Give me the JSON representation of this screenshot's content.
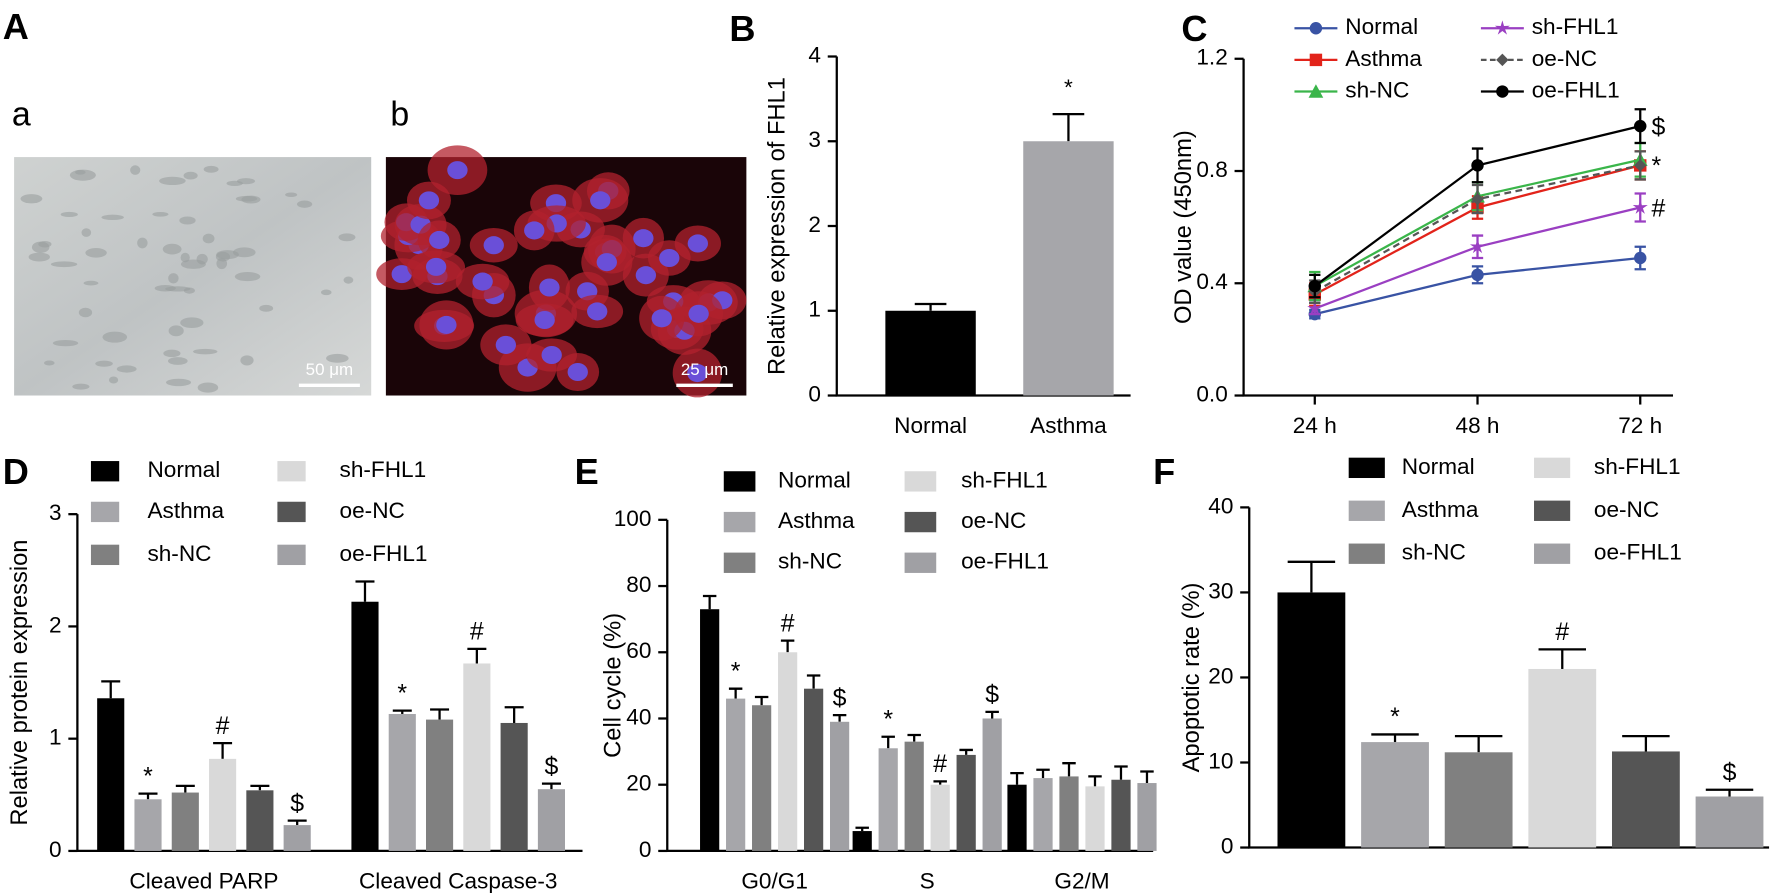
{
  "figure_A": {
    "label": "A",
    "images": [
      {
        "label": "a",
        "scale_bar": "50 μm"
      },
      {
        "label": "b",
        "scale_bar": "25 μm"
      }
    ]
  },
  "chart_data": [
    {
      "type": "bar",
      "label": "B",
      "ylabel": "Relative expression of FHL1",
      "categories": [
        "Normal",
        "Asthma"
      ],
      "values": [
        1.0,
        3.0
      ],
      "errors": [
        0.08,
        0.32
      ],
      "annotations": [
        null,
        "*"
      ],
      "colors": [
        "#000000",
        "#a6a6aa"
      ],
      "ylim": [
        0,
        4
      ],
      "yticks": [
        0,
        1,
        2,
        3,
        4
      ]
    },
    {
      "type": "line",
      "label": "C",
      "ylabel": "OD value (450nm)",
      "categories": [
        "24 h",
        "48 h",
        "72 h"
      ],
      "ylim": [
        0,
        1.2
      ],
      "yticks": [
        {
          "value": 0,
          "label": "0.0"
        },
        0.4,
        0.8,
        1.2
      ],
      "series": [
        {
          "name": "Normal",
          "color": "#3953a4",
          "marker": "circle",
          "values": [
            0.29,
            0.43,
            0.49
          ],
          "errors": [
            0.015,
            0.03,
            0.04
          ]
        },
        {
          "name": "Asthma",
          "color": "#e2231a",
          "marker": "square",
          "values": [
            0.36,
            0.67,
            0.82
          ],
          "errors": [
            0.04,
            0.04,
            0.05
          ],
          "annotations": [
            null,
            null,
            "*"
          ]
        },
        {
          "name": "sh-NC",
          "color": "#3ab54a",
          "marker": "triangle",
          "values": [
            0.39,
            0.71,
            0.84
          ],
          "errors": [
            0.05,
            0.05,
            0.06
          ]
        },
        {
          "name": "sh-FHL1",
          "color": "#9a3fc2",
          "marker": "star",
          "values": [
            0.31,
            0.53,
            0.67
          ],
          "errors": [
            0.02,
            0.04,
            0.05
          ],
          "annotations": [
            null,
            null,
            "#"
          ]
        },
        {
          "name": "oe-NC",
          "color": "#555555",
          "marker": "diamond",
          "dash": true,
          "values": [
            0.37,
            0.7,
            0.82
          ],
          "errors": [
            0.04,
            0.05,
            0.05
          ]
        },
        {
          "name": "oe-FHL1",
          "color": "#000000",
          "marker": "circle",
          "values": [
            0.39,
            0.82,
            0.96
          ],
          "errors": [
            0.04,
            0.06,
            0.06
          ],
          "annotations": [
            null,
            null,
            "$"
          ]
        }
      ]
    },
    {
      "type": "bar",
      "label": "D",
      "ylabel": "Relative protein expression",
      "categories": [
        "Cleaved PARP",
        "Cleaved Caspase-3"
      ],
      "ylim": [
        0,
        3
      ],
      "yticks": [
        0,
        1,
        2,
        3
      ],
      "series": [
        {
          "name": "Normal",
          "color": "#000000",
          "values": [
            1.36,
            2.22
          ],
          "errors": [
            0.15,
            0.18
          ]
        },
        {
          "name": "Asthma",
          "color": "#a6a6aa",
          "values": [
            0.46,
            1.22
          ],
          "errors": [
            0.05,
            0.03
          ],
          "annotations": [
            "*",
            "*"
          ]
        },
        {
          "name": "sh-NC",
          "color": "#808080",
          "values": [
            0.52,
            1.17
          ],
          "errors": [
            0.06,
            0.09
          ]
        },
        {
          "name": "sh-FHL1",
          "color": "#d9d9d9",
          "values": [
            0.82,
            1.67
          ],
          "errors": [
            0.14,
            0.13
          ],
          "annotations": [
            "#",
            "#"
          ]
        },
        {
          "name": "oe-NC",
          "color": "#555555",
          "values": [
            0.54,
            1.14
          ],
          "errors": [
            0.04,
            0.14
          ]
        },
        {
          "name": "oe-FHL1",
          "color": "#a0a0a4",
          "values": [
            0.23,
            0.55
          ],
          "errors": [
            0.04,
            0.05
          ],
          "annotations": [
            "$",
            "$"
          ]
        }
      ]
    },
    {
      "type": "bar",
      "label": "E",
      "ylabel": "Cell cycle (%)",
      "categories": [
        "G0/G1",
        "S",
        "G2/M"
      ],
      "ylim": [
        0,
        100
      ],
      "yticks": [
        0,
        20,
        40,
        60,
        80,
        100
      ],
      "series": [
        {
          "name": "Normal",
          "color": "#000000",
          "values": [
            73,
            6,
            20
          ],
          "errors": [
            4,
            1,
            3.5
          ]
        },
        {
          "name": "Asthma",
          "color": "#a6a6aa",
          "values": [
            46,
            31,
            22
          ],
          "errors": [
            3,
            3.5,
            2.5
          ],
          "annotations": [
            "*",
            "*",
            null
          ]
        },
        {
          "name": "sh-NC",
          "color": "#808080",
          "values": [
            44,
            33,
            22.5
          ],
          "errors": [
            2.5,
            2,
            4
          ]
        },
        {
          "name": "sh-FHL1",
          "color": "#d9d9d9",
          "values": [
            60,
            20,
            19.5
          ],
          "errors": [
            3.5,
            1,
            3
          ],
          "annotations": [
            "#",
            "#",
            null
          ]
        },
        {
          "name": "oe-NC",
          "color": "#555555",
          "values": [
            49,
            29,
            21.5
          ],
          "errors": [
            4,
            1.5,
            4
          ]
        },
        {
          "name": "oe-FHL1",
          "color": "#a0a0a4",
          "values": [
            39,
            40,
            20.5
          ],
          "errors": [
            2,
            2,
            3.5
          ],
          "annotations": [
            "$",
            "$",
            null
          ]
        }
      ]
    },
    {
      "type": "bar",
      "label": "F",
      "ylabel": "Apoptotic rate (%)",
      "categories": [
        null
      ],
      "ylim": [
        0,
        40
      ],
      "yticks": [
        0,
        10,
        20,
        30,
        40
      ],
      "series": [
        {
          "name": "Normal",
          "color": "#000000",
          "values": [
            30
          ],
          "errors": [
            3.6
          ]
        },
        {
          "name": "Asthma",
          "color": "#a6a6aa",
          "values": [
            12.4
          ],
          "errors": [
            0.9
          ],
          "annotations": [
            "*"
          ]
        },
        {
          "name": "sh-NC",
          "color": "#808080",
          "values": [
            11.2
          ],
          "errors": [
            1.9
          ]
        },
        {
          "name": "sh-FHL1",
          "color": "#d9d9d9",
          "values": [
            21
          ],
          "errors": [
            2.3
          ],
          "annotations": [
            "#"
          ]
        },
        {
          "name": "oe-NC",
          "color": "#555555",
          "values": [
            11.3
          ],
          "errors": [
            1.8
          ]
        },
        {
          "name": "oe-FHL1",
          "color": "#a0a0a4",
          "values": [
            6
          ],
          "errors": [
            0.8
          ],
          "annotations": [
            "$"
          ]
        }
      ]
    }
  ]
}
